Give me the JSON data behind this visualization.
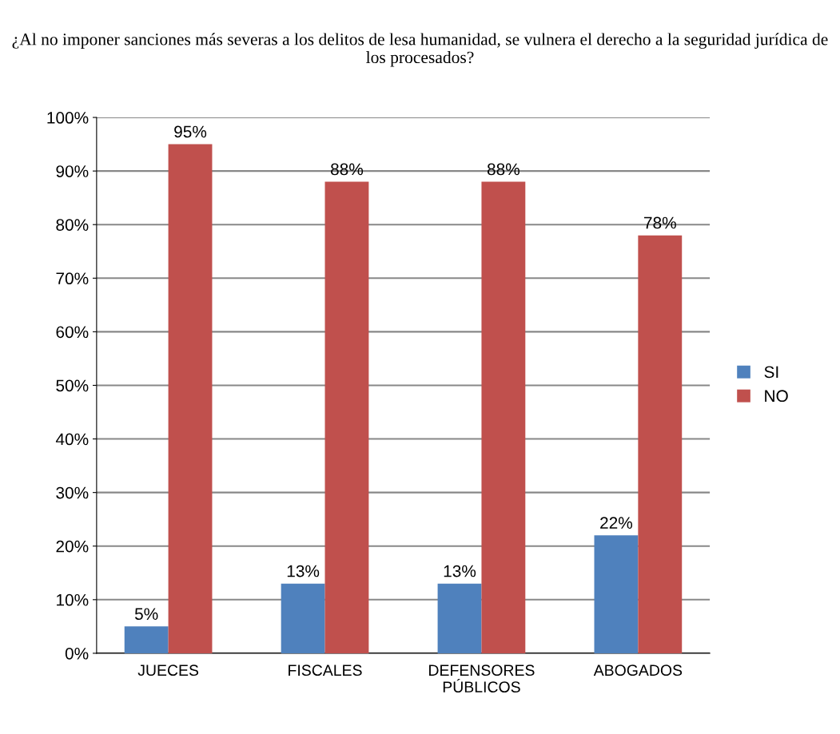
{
  "chart_data": {
    "type": "bar",
    "title": "¿Al no imponer sanciones más severas a los delitos de lesa humanidad, se vulnera el derecho a la seguridad jurídica de los procesados?",
    "categories": [
      "JUECES",
      "FISCALES",
      "DEFENSORES\nPÚBLICOS",
      "ABOGADOS"
    ],
    "series": [
      {
        "name": "SI",
        "color": "#4f81bd",
        "values": [
          5,
          13,
          13,
          22
        ],
        "value_labels": [
          "5%",
          "13%",
          "13%",
          "22%"
        ]
      },
      {
        "name": "NO",
        "color": "#c0504d",
        "values": [
          95,
          88,
          88,
          78
        ],
        "value_labels": [
          "95%",
          "88%",
          "88%",
          "78%"
        ]
      }
    ],
    "ylim": [
      0,
      100
    ],
    "yticks": [
      {
        "value": 0,
        "label": "0%"
      },
      {
        "value": 10,
        "label": "10%"
      },
      {
        "value": 20,
        "label": "20%"
      },
      {
        "value": 30,
        "label": "30%"
      },
      {
        "value": 40,
        "label": "40%"
      },
      {
        "value": 50,
        "label": "50%"
      },
      {
        "value": 60,
        "label": "60%"
      },
      {
        "value": 70,
        "label": "70%"
      },
      {
        "value": 80,
        "label": "80%"
      },
      {
        "value": 90,
        "label": "90%"
      },
      {
        "value": 100,
        "label": "100%"
      }
    ],
    "grid": "y",
    "legend": "right"
  }
}
